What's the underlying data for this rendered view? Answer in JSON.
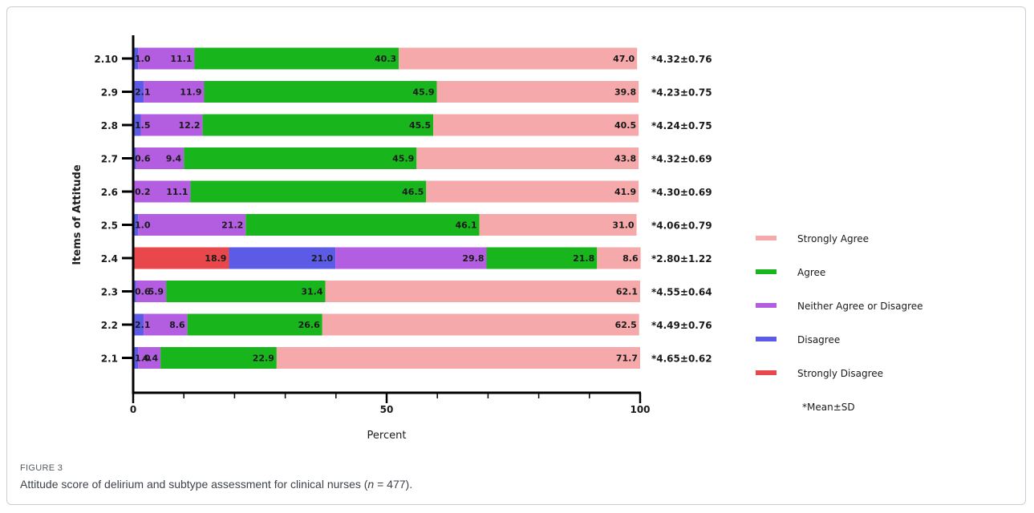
{
  "figure": {
    "label": "FIGURE 3",
    "caption_pre": "Attitude score of delirium and subtype assessment for clinical nurses (",
    "caption_n": "n",
    "caption_post": " = 477)."
  },
  "chart_data": {
    "type": "bar",
    "orientation": "horizontal",
    "stacked": true,
    "title": "",
    "xlabel": "Percent",
    "ylabel": "Items of Attitude",
    "xlim": [
      0,
      100
    ],
    "xticks": [
      0,
      50,
      100
    ],
    "categories": [
      "2.10",
      "2.9",
      "2.8",
      "2.7",
      "2.6",
      "2.5",
      "2.4",
      "2.3",
      "2.2",
      "2.1"
    ],
    "series": [
      {
        "name": "Strongly Disagree",
        "color": "#e8474b",
        "values": [
          0,
          0,
          0,
          0,
          0,
          0,
          18.9,
          0,
          0,
          0
        ],
        "labels": [
          "",
          "",
          "",
          "",
          "",
          "",
          "18.9",
          "",
          "",
          ""
        ]
      },
      {
        "name": "Disagree",
        "color": "#5b5be6",
        "values": [
          1.0,
          2.1,
          1.5,
          0.6,
          0.2,
          1.0,
          21.0,
          0.6,
          2.1,
          1.0
        ],
        "labels": [
          "1.0",
          "2.1",
          "1.5",
          "0.6",
          "0.2",
          "1.0",
          "21.0",
          "0.6",
          "2.1",
          "1.0"
        ]
      },
      {
        "name": "Neither Agree or Disagree",
        "color": "#b35ee0",
        "values": [
          11.1,
          11.9,
          12.2,
          9.4,
          11.1,
          21.2,
          29.8,
          5.9,
          8.6,
          4.4
        ],
        "labels": [
          "11.1",
          "11.9",
          "12.2",
          "9.4",
          "11.1",
          "21.2",
          "29.8",
          "5.9",
          "8.6",
          "4.4"
        ]
      },
      {
        "name": "Agree",
        "color": "#18b51d",
        "values": [
          40.3,
          45.9,
          45.5,
          45.9,
          46.5,
          46.1,
          21.8,
          31.4,
          26.6,
          22.9
        ],
        "labels": [
          "40.3",
          "45.9",
          "45.5",
          "45.9",
          "46.5",
          "46.1",
          "21.8",
          "31.4",
          "26.6",
          "22.9"
        ]
      },
      {
        "name": "Strongly Agree",
        "color": "#f6a9ab",
        "values": [
          47.0,
          39.8,
          40.5,
          43.8,
          41.9,
          31.0,
          8.6,
          62.1,
          62.5,
          71.7
        ],
        "labels": [
          "47.0",
          "39.8",
          "40.5",
          "43.8",
          "41.9",
          "31.0",
          "8.6",
          "62.1",
          "62.5",
          "71.7"
        ]
      }
    ],
    "annotations": [
      "*4.32±0.76",
      "*4.23±0.75",
      "*4.24±0.75",
      "*4.32±0.69",
      "*4.30±0.69",
      "*4.06±0.79",
      "*2.80±1.22",
      "*4.55±0.64",
      "*4.49±0.76",
      "*4.65±0.62"
    ],
    "legend": {
      "placement": "right",
      "order": [
        "Strongly Agree",
        "Agree",
        "Neither Agree or Disagree",
        "Disagree",
        "Strongly Disagree"
      ],
      "note": "*Mean±SD"
    }
  }
}
